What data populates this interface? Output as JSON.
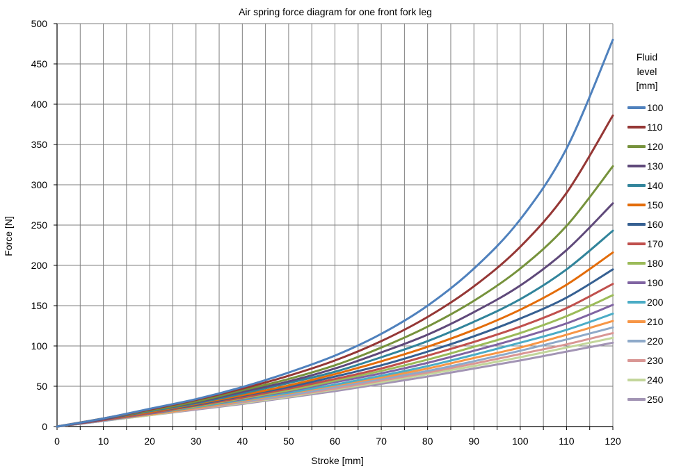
{
  "chart_data": {
    "type": "line",
    "title": "Air spring force diagram for one front fork leg",
    "xlabel": "Stroke [mm]",
    "ylabel": "Force [N]",
    "xlim": [
      0,
      120
    ],
    "ylim": [
      0,
      500
    ],
    "xticks": [
      "0",
      "10",
      "20",
      "30",
      "40",
      "50",
      "60",
      "70",
      "80",
      "90",
      "100",
      "110",
      "120"
    ],
    "yticks": [
      "0",
      "50",
      "100",
      "150",
      "200",
      "250",
      "300",
      "350",
      "400",
      "450",
      "500"
    ],
    "grid": true,
    "legend_position": "right",
    "legend_title": [
      "Fluid",
      "level",
      "[mm]"
    ],
    "x": [
      0,
      10,
      20,
      30,
      40,
      50,
      60,
      70,
      80,
      90,
      100,
      110,
      120
    ],
    "series": [
      {
        "name": "100",
        "color": "#4F81BD",
        "values": [
          0,
          10,
          22,
          34,
          49,
          67,
          88,
          115,
          150,
          196,
          257,
          345,
          480
        ]
      },
      {
        "name": "110",
        "color": "#953735",
        "values": [
          0,
          10,
          21,
          33,
          47,
          63,
          82,
          106,
          136,
          174,
          223,
          290,
          386
        ]
      },
      {
        "name": "120",
        "color": "#76923C",
        "values": [
          0,
          10,
          20,
          31,
          45,
          59,
          76,
          98,
          124,
          156,
          196,
          249,
          323
        ]
      },
      {
        "name": "130",
        "color": "#5F497A",
        "values": [
          0,
          9,
          20,
          30,
          43,
          56,
          72,
          92,
          114,
          142,
          175,
          219,
          277
        ]
      },
      {
        "name": "140",
        "color": "#31849B",
        "values": [
          0,
          9,
          19,
          29,
          41,
          54,
          68,
          86,
          106,
          130,
          158,
          195,
          243
        ]
      },
      {
        "name": "150",
        "color": "#E36C0A",
        "values": [
          0,
          9,
          18,
          28,
          39,
          51,
          65,
          81,
          99,
          120,
          145,
          176,
          216
        ]
      },
      {
        "name": "160",
        "color": "#366092",
        "values": [
          0,
          9,
          18,
          27,
          38,
          49,
          62,
          76,
          93,
          112,
          134,
          160,
          195
        ]
      },
      {
        "name": "170",
        "color": "#C0504D",
        "values": [
          0,
          8,
          17,
          26,
          36,
          47,
          59,
          72,
          88,
          105,
          124,
          147,
          177
        ]
      },
      {
        "name": "180",
        "color": "#9BBB59",
        "values": [
          0,
          8,
          17,
          25,
          35,
          45,
          57,
          69,
          83,
          99,
          116,
          137,
          163
        ]
      },
      {
        "name": "190",
        "color": "#8064A2",
        "values": [
          0,
          8,
          16,
          25,
          34,
          44,
          55,
          66,
          79,
          94,
          110,
          128,
          151
        ]
      },
      {
        "name": "200",
        "color": "#4BACC6",
        "values": [
          0,
          8,
          16,
          24,
          33,
          42,
          52,
          63,
          75,
          89,
          104,
          120,
          140
        ]
      },
      {
        "name": "210",
        "color": "#F79646",
        "values": [
          0,
          8,
          15,
          23,
          32,
          41,
          51,
          61,
          72,
          85,
          98,
          114,
          131
        ]
      },
      {
        "name": "220",
        "color": "#8EA9C9",
        "values": [
          0,
          7,
          15,
          23,
          31,
          39,
          49,
          59,
          69,
          81,
          94,
          108,
          123
        ]
      },
      {
        "name": "230",
        "color": "#D99694",
        "values": [
          0,
          7,
          15,
          22,
          30,
          38,
          47,
          57,
          67,
          78,
          90,
          102,
          116
        ]
      },
      {
        "name": "240",
        "color": "#C3D69B",
        "values": [
          0,
          7,
          14,
          22,
          29,
          37,
          46,
          55,
          65,
          75,
          86,
          98,
          110
        ]
      },
      {
        "name": "250",
        "color": "#A294B4",
        "values": [
          0,
          7,
          14,
          21,
          28,
          36,
          44,
          53,
          62,
          72,
          82,
          93,
          104
        ]
      }
    ]
  }
}
